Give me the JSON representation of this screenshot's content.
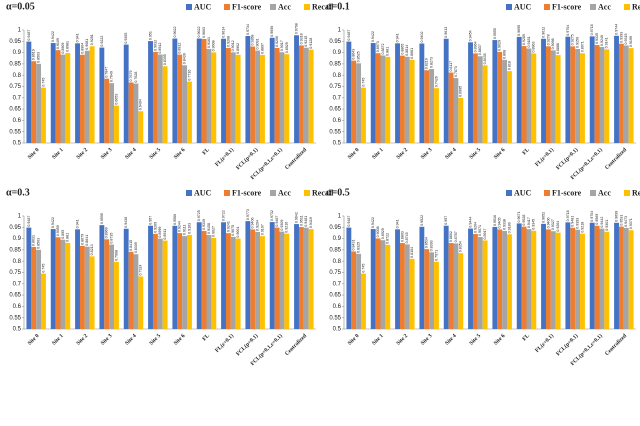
{
  "chart_data": [
    {
      "type": "bar",
      "title": "α=0.05",
      "categories": [
        "Site 0",
        "Site 1",
        "Site 2",
        "Site 3",
        "Site 4",
        "Site 5",
        "Site 6",
        "FL",
        "FL(ε=0.1)",
        "FCL(p=0.1)",
        "FCL(p=0.1,ε=0.1)",
        "Centralized"
      ],
      "series": [
        {
          "name": "AUC",
          "color": "#4472c4",
          "values": [
            0.9487,
            0.9422,
            0.941,
            0.9222,
            0.9355,
            0.951,
            0.9622,
            0.9622,
            0.9614,
            0.9734,
            0.9656,
            0.9768
          ]
        },
        {
          "name": "F1-score",
          "color": "#ed7d31",
          "values": [
            0.8619,
            0.9109,
            0.8904,
            0.7847,
            0.7679,
            0.9032,
            0.8912,
            0.9603,
            0.9208,
            0.9268,
            0.9206,
            0.9318
          ]
        },
        {
          "name": "Acc",
          "color": "#a5a5a5",
          "values": [
            0.8503,
            0.8909,
            0.9081,
            0.7649,
            0.7628,
            0.8912,
            0.8439,
            0.9161,
            0.9012,
            0.9091,
            0.9017,
            0.9215
          ]
        },
        {
          "name": "Recall",
          "color": "#ffc000",
          "values": [
            0.745,
            0.8981,
            0.9281,
            0.6653,
            0.6404,
            0.8395,
            0.7716,
            0.9008,
            0.8902,
            0.8897,
            0.8929,
            0.9128
          ]
        }
      ],
      "ylim": [
        0.5,
        1
      ],
      "yticks": [
        0.5,
        0.55,
        0.6,
        0.65,
        0.7,
        0.75,
        0.8,
        0.85,
        0.9,
        0.95,
        1
      ]
    },
    {
      "type": "bar",
      "title": "α=0.1",
      "categories": [
        "Site 0",
        "Site 1",
        "Site 2",
        "Site 3",
        "Site 4",
        "Site 5",
        "Site 6",
        "FL",
        "FL(ε=0.1)",
        "FCL(p=0.1)",
        "FCL(p=0.1,ε=0.1)",
        "Centralized"
      ],
      "series": [
        {
          "name": "AUC",
          "color": "#4472c4",
          "values": [
            0.9487,
            0.9422,
            0.941,
            0.9402,
            0.9613,
            0.9454,
            0.9555,
            0.9695,
            0.9612,
            0.9704,
            0.9718,
            0.9744
          ]
        },
        {
          "name": "F1-score",
          "color": "#ed7d31",
          "values": [
            0.8643,
            0.8973,
            0.8865,
            0.8219,
            0.8117,
            0.8964,
            0.9029,
            0.9289,
            0.9278,
            0.9275,
            0.9335,
            0.9393
          ]
        },
        {
          "name": "Acc",
          "color": "#a5a5a5",
          "values": [
            0.8525,
            0.8872,
            0.8814,
            0.8273,
            0.7873,
            0.8837,
            0.868,
            0.9181,
            0.9098,
            0.9159,
            0.9246,
            0.9315
          ]
        },
        {
          "name": "Recall",
          "color": "#ffc000",
          "values": [
            0.745,
            0.881,
            0.8681,
            0.7426,
            0.6995,
            0.8435,
            0.818,
            0.8963,
            0.8888,
            0.8971,
            0.9141,
            0.9199
          ]
        }
      ],
      "ylim": [
        0.5,
        1
      ],
      "yticks": [
        0.5,
        0.55,
        0.6,
        0.65,
        0.7,
        0.75,
        0.8,
        0.85,
        0.9,
        0.95,
        1
      ]
    },
    {
      "type": "bar",
      "title": "α=0.3",
      "categories": [
        "Site 0",
        "Site 1",
        "Site 2",
        "Site 3",
        "Site 4",
        "Site 5",
        "Site 6",
        "FL",
        "FL(ε=0.1)",
        "FCL(p=0.1)",
        "FCL(p=0.1,ε=0.1)",
        "Centralized"
      ],
      "series": [
        {
          "name": "AUC",
          "color": "#4472c4",
          "values": [
            0.9487,
            0.9422,
            0.941,
            0.9595,
            0.9436,
            0.957,
            0.9566,
            0.9725,
            0.9722,
            0.9773,
            0.9732,
            0.9642
          ]
        },
        {
          "name": "F1-score",
          "color": "#ed7d31",
          "values": [
            0.8631,
            0.9059,
            0.8679,
            0.8969,
            0.8415,
            0.9209,
            0.9244,
            0.9339,
            0.9241,
            0.9406,
            0.9487,
            0.9511
          ]
        },
        {
          "name": "Acc",
          "color": "#a5a5a5",
          "values": [
            0.8503,
            0.895,
            0.8641,
            0.8735,
            0.8309,
            0.8999,
            0.9111,
            0.9158,
            0.9075,
            0.9294,
            0.9309,
            0.9481
          ]
        },
        {
          "name": "Recall",
          "color": "#ffc000",
          "values": [
            0.745,
            0.881,
            0.8213,
            0.7968,
            0.7324,
            0.8911,
            0.9163,
            0.9027,
            0.9001,
            0.9107,
            0.9216,
            0.9419
          ]
        }
      ],
      "ylim": [
        0.5,
        1
      ],
      "yticks": [
        0.5,
        0.55,
        0.6,
        0.65,
        0.7,
        0.75,
        0.8,
        0.85,
        0.9,
        0.95,
        1
      ]
    },
    {
      "type": "bar",
      "title": "α=0.5",
      "categories": [
        "Site 0",
        "Site 1",
        "Site 2",
        "Site 3",
        "Site 4",
        "Site 5",
        "Site 6",
        "FL",
        "FL(ε=0.1)",
        "FCL(p=0.1)",
        "FCL(p=0.1,ε=0.1)",
        "Centralized"
      ],
      "series": [
        {
          "name": "AUC",
          "color": "#4472c4",
          "values": [
            0.9487,
            0.9422,
            0.941,
            0.9522,
            0.957,
            0.9444,
            0.9516,
            0.9671,
            0.9652,
            0.9718,
            0.9704,
            0.9699
          ]
        },
        {
          "name": "F1-score",
          "color": "#ed7d31",
          "values": [
            0.8431,
            0.9008,
            0.8803,
            0.8534,
            0.8802,
            0.9204,
            0.9405,
            0.9528,
            0.9406,
            0.9481,
            0.9569,
            0.9531
          ]
        },
        {
          "name": "Acc",
          "color": "#a5a5a5",
          "values": [
            0.8325,
            0.8929,
            0.8745,
            0.8393,
            0.8787,
            0.9071,
            0.9338,
            0.9417,
            0.9327,
            0.9393,
            0.9442,
            0.9473
          ]
        },
        {
          "name": "Recall",
          "color": "#ffc000",
          "values": [
            0.745,
            0.8722,
            0.8104,
            0.7971,
            0.8354,
            0.8917,
            0.9189,
            0.9345,
            0.9264,
            0.9218,
            0.9301,
            0.9371
          ]
        }
      ],
      "ylim": [
        0.5,
        1
      ],
      "yticks": [
        0.5,
        0.55,
        0.6,
        0.65,
        0.7,
        0.75,
        0.8,
        0.85,
        0.9,
        0.95,
        1
      ]
    }
  ]
}
